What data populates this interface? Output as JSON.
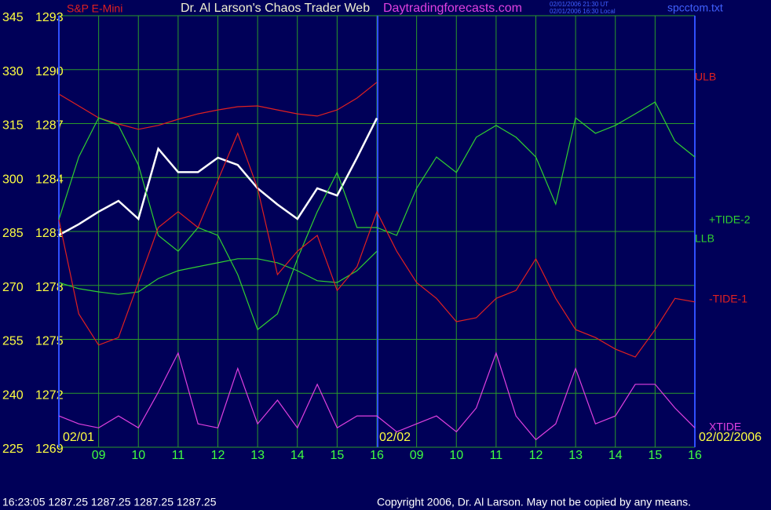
{
  "chart_data": {
    "type": "line",
    "title": "Dr. Al Larson's Chaos Trader Web",
    "site": "Daytradingforecasts.com",
    "timestamps": [
      "02/01/2006 21:30 UT",
      "02/01/2006 16:30 Local"
    ],
    "file": "spcctom.txt",
    "quote": "16:23:05  1287.25 1287.25 1287.25 1287.25",
    "copyright": "Copyright 2006, Dr. Al Larson. May not be copied by any means.",
    "date_labels": [
      "02/01",
      "02/02",
      "02/02/2006"
    ],
    "grid": true,
    "xlim": [
      0,
      16
    ],
    "xticks": [
      {
        "value": 1,
        "label": "09"
      },
      {
        "value": 2,
        "label": "10"
      },
      {
        "value": 3,
        "label": "11"
      },
      {
        "value": 4,
        "label": "12"
      },
      {
        "value": 5,
        "label": "13"
      },
      {
        "value": 6,
        "label": "14"
      },
      {
        "value": 7,
        "label": "15"
      },
      {
        "value": 8,
        "label": "16"
      },
      {
        "value": 9,
        "label": "09"
      },
      {
        "value": 10,
        "label": "10"
      },
      {
        "value": 11,
        "label": "11"
      },
      {
        "value": 12,
        "label": "12"
      },
      {
        "value": 13,
        "label": "13"
      },
      {
        "value": 14,
        "label": "14"
      },
      {
        "value": 15,
        "label": "15"
      },
      {
        "value": 16,
        "label": "16"
      }
    ],
    "ylim": [
      225,
      345
    ],
    "yticks": [
      225,
      240,
      255,
      270,
      285,
      300,
      315,
      330,
      345
    ],
    "y2lim": [
      1269,
      1293
    ],
    "y2ticks": [
      1269,
      1272,
      1275,
      1278,
      1281,
      1284,
      1287,
      1290,
      1293
    ],
    "x": [
      0,
      0.5,
      1,
      1.5,
      2,
      2.5,
      3,
      3.5,
      4,
      4.5,
      5,
      5.5,
      6,
      6.5,
      7,
      7.5,
      8,
      8.5,
      9,
      9.5,
      10,
      10.5,
      11,
      11.5,
      12,
      12.5,
      13,
      13.5,
      14,
      14.5,
      15,
      15.5,
      16
    ],
    "series": [
      {
        "name": "S&P E-Mini",
        "color": "#ffffff",
        "axis": "y2",
        "values": [
          1280.8,
          1281.4,
          1282.1,
          1282.7,
          1281.7,
          1285.6,
          1284.3,
          1284.3,
          1285.1,
          1284.7,
          1283.4,
          1282.5,
          1281.7,
          1283.4,
          1283.0,
          1285.1,
          1287.3,
          null,
          null,
          null,
          null,
          null,
          null,
          null,
          null,
          null,
          null,
          null,
          null,
          null,
          null,
          null,
          null
        ]
      },
      {
        "name": "ULB",
        "color": "#e02020",
        "values": [
          323.2,
          319.9,
          316.6,
          314.9,
          313.4,
          314.5,
          316.2,
          317.7,
          318.8,
          319.7,
          319.9,
          318.8,
          317.7,
          317.1,
          318.8,
          322.1,
          326.5,
          null,
          null,
          null,
          null,
          null,
          null,
          null,
          null,
          null,
          null,
          null,
          null,
          null,
          null,
          null,
          null
        ]
      },
      {
        "name": "+TIDE-2",
        "color": "#30d030",
        "values": [
          288.3,
          305.7,
          316.6,
          314.5,
          303.5,
          283.9,
          279.5,
          286.1,
          283.9,
          273.0,
          257.7,
          262.1,
          277.4,
          290.5,
          301.4,
          286.1,
          286.1,
          283.9,
          297.0,
          305.7,
          301.4,
          311.2,
          314.5,
          311.2,
          305.7,
          292.6,
          316.6,
          312.3,
          314.5,
          317.7,
          321.0,
          310.1,
          305.7
        ]
      },
      {
        "name": "LLB",
        "color": "#30d030",
        "values": [
          270.8,
          269.1,
          268.2,
          267.5,
          268.2,
          271.9,
          274.1,
          275.2,
          276.3,
          277.4,
          277.4,
          276.3,
          274.1,
          271.3,
          270.8,
          274.1,
          279.5,
          null,
          null,
          null,
          null,
          null,
          null,
          null,
          null,
          null,
          null,
          null,
          null,
          null,
          null,
          null,
          null
        ]
      },
      {
        "name": "-TIDE-1",
        "color": "#e02020",
        "values": [
          288.3,
          262.1,
          253.4,
          255.5,
          270.8,
          286.1,
          290.5,
          286.1,
          299.2,
          312.3,
          297.0,
          273.0,
          279.5,
          283.9,
          268.6,
          275.2,
          290.5,
          279.5,
          270.8,
          266.4,
          259.9,
          261.0,
          266.4,
          268.6,
          277.4,
          266.4,
          257.7,
          255.5,
          252.3,
          250.1,
          257.7,
          266.4,
          265.4
        ]
      },
      {
        "name": "XTIDE",
        "color": "#e040e0",
        "values": [
          233.7,
          231.5,
          230.4,
          233.7,
          230.4,
          240.3,
          251.2,
          231.5,
          230.4,
          246.9,
          231.5,
          238.1,
          230.4,
          242.5,
          230.4,
          233.7,
          233.7,
          229.3,
          231.5,
          233.7,
          229.3,
          235.9,
          251.2,
          233.7,
          227.1,
          231.5,
          246.9,
          231.5,
          233.7,
          242.5,
          242.5,
          235.9,
          230.4
        ]
      }
    ]
  }
}
